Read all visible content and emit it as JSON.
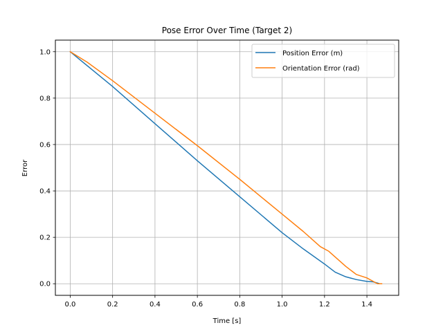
{
  "chart_data": {
    "type": "line",
    "title": "Pose Error Over Time (Target 2)",
    "xlabel": "Time [s]",
    "ylabel": "Error",
    "xlim": [
      -0.07,
      1.55
    ],
    "ylim": [
      -0.05,
      1.05
    ],
    "xticks": [
      0.0,
      0.2,
      0.4,
      0.6,
      0.8,
      1.0,
      1.2,
      1.4
    ],
    "xtick_labels": [
      "0.0",
      "0.2",
      "0.4",
      "0.6",
      "0.8",
      "1.0",
      "1.2",
      "1.4"
    ],
    "yticks": [
      0.0,
      0.2,
      0.4,
      0.6,
      0.8,
      1.0
    ],
    "ytick_labels": [
      "0.0",
      "0.2",
      "0.4",
      "0.6",
      "0.8",
      "1.0"
    ],
    "grid": true,
    "legend_position": "top-right",
    "series": [
      {
        "name": "Position Error (m)",
        "color": "#1f77b4",
        "x": [
          0.0,
          0.1,
          0.2,
          0.4,
          0.6,
          0.8,
          1.0,
          1.1,
          1.2,
          1.25,
          1.3,
          1.35,
          1.4,
          1.43,
          1.45,
          1.46
        ],
        "y": [
          1.0,
          0.925,
          0.85,
          0.69,
          0.53,
          0.375,
          0.22,
          0.15,
          0.085,
          0.05,
          0.03,
          0.018,
          0.01,
          0.008,
          0.003,
          0.0
        ]
      },
      {
        "name": "Orientation Error (rad)",
        "color": "#ff7f0e",
        "x": [
          0.0,
          0.08,
          0.2,
          0.4,
          0.6,
          0.8,
          1.0,
          1.1,
          1.18,
          1.22,
          1.3,
          1.35,
          1.4,
          1.43,
          1.45,
          1.47
        ],
        "y": [
          1.0,
          0.955,
          0.875,
          0.735,
          0.595,
          0.45,
          0.3,
          0.225,
          0.16,
          0.14,
          0.075,
          0.04,
          0.025,
          0.01,
          0.0,
          0.0
        ]
      }
    ]
  }
}
